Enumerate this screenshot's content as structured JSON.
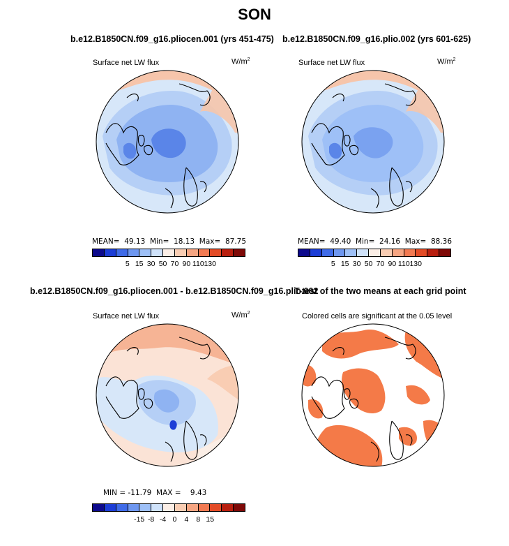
{
  "figure": {
    "title": "SON"
  },
  "panels": {
    "p1": {
      "title": "b.e12.B1850CN.f09_g16.pliocen.001 (yrs 451-475)",
      "variable": "Surface net LW flux",
      "units": "W/m",
      "units_sup": "2",
      "stats": "MEAN=  49.13  Min=  18.13  Max=  87.75"
    },
    "p2": {
      "title": "b.e12.B1850CN.f09_g16.plio.002 (yrs 601-625)",
      "variable": "Surface net LW flux",
      "units": "W/m",
      "units_sup": "2",
      "stats": "MEAN=  49.40  Min=  24.16  Max=  88.36"
    },
    "p3": {
      "title": "b.e12.B1850CN.f09_g16.pliocen.001 - b.e12.B1850CN.f09_g16.plio.002",
      "variable": "Surface net LW flux",
      "units": "W/m",
      "units_sup": "2",
      "stats": "MIN = -11.79  MAX =    9.43"
    },
    "p4": {
      "title": "T-test of the two means at each grid point",
      "subtitle": "Colored cells are significant at the 0.05 level"
    }
  },
  "colorbars": {
    "abs": {
      "colors": [
        "#0d0a8c",
        "#1c3dd6",
        "#3f6be8",
        "#6e97f0",
        "#9ec0f7",
        "#cfe2fa",
        "#fbeee6",
        "#f9cdb3",
        "#f6a582",
        "#f27a52",
        "#e34b26",
        "#b81e0e",
        "#7e0907"
      ],
      "tick_labels": [
        "5",
        "15",
        "30",
        "50",
        "70",
        "90",
        "110",
        "130"
      ]
    },
    "diff": {
      "colors": [
        "#0d0a8c",
        "#1c3dd6",
        "#3f6be8",
        "#6e97f0",
        "#9ec0f7",
        "#cfe2fa",
        "#fbeee6",
        "#f9cdb3",
        "#f6a582",
        "#f27a52",
        "#e34b26",
        "#b81e0e",
        "#7e0907"
      ],
      "tick_labels": [
        "-15",
        "-8",
        "-4",
        "0",
        "4",
        "8",
        "15"
      ]
    }
  },
  "colors": {
    "ocean_warm": "#f6c5ab",
    "ocean_pale": "#d7e7f9",
    "ice_blue": "#8fb3f2",
    "deep_blue": "#5a85e8",
    "sig_orange": "#f47a48"
  }
}
